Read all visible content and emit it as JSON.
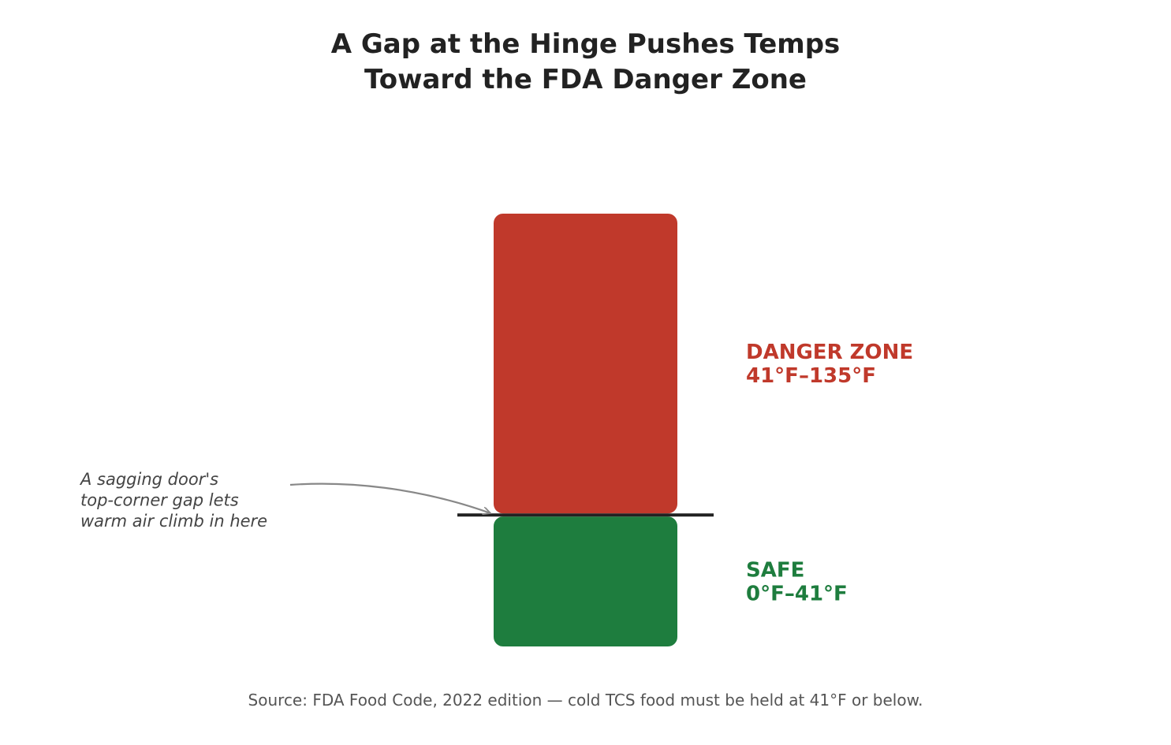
{
  "title_lines": [
    "A Gap at the Hinge Pushes Temps",
    "Toward the FDA Danger Zone"
  ],
  "source": "Source: FDA Food Code, 2022 edition — cold TCS food must be held at 41°F or below.",
  "annotation_lines": [
    "A sagging door's",
    "top-corner gap lets",
    "warm air climb in here"
  ],
  "chart_data": {
    "type": "bar",
    "title": "A Gap at the Hinge Pushes Temps Toward the FDA Danger Zone",
    "stacked": true,
    "segments": [
      {
        "name": "SAFE",
        "range_label": "0°F–41°F",
        "from": 0,
        "to": 41,
        "color": "#1e7d3e"
      },
      {
        "name": "DANGER ZONE",
        "range_label": "41°F–135°F",
        "from": 41,
        "to": 135,
        "color": "#c0392b"
      }
    ],
    "threshold": 41,
    "ylim": [
      0,
      135
    ],
    "grid": false
  },
  "colors": {
    "threshold_line": "#222222",
    "annotation_text": "#444444",
    "arrow": "#888888"
  }
}
